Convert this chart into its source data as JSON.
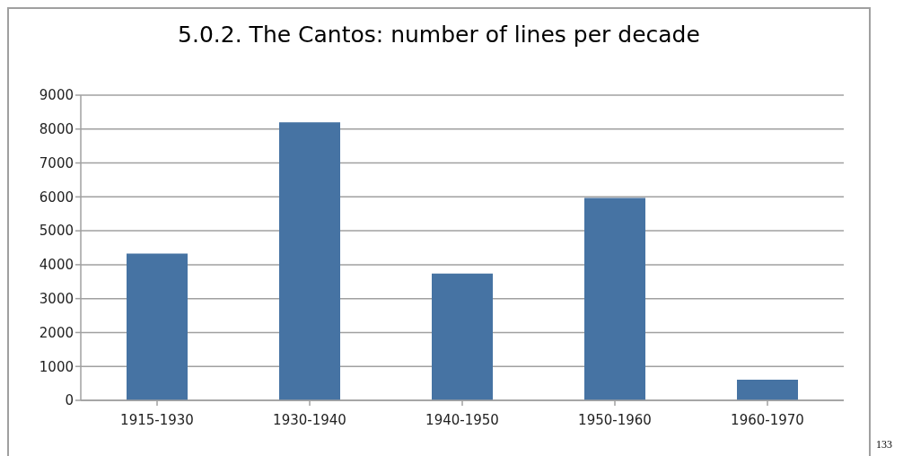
{
  "chart_data": {
    "type": "bar",
    "title": "5.0.2. The Cantos: number of lines per decade",
    "categories": [
      "1915-1930",
      "1930-1940",
      "1940-1950",
      "1950-1960",
      "1960-1970"
    ],
    "values": [
      4330,
      8200,
      3740,
      5970,
      610
    ],
    "color": "#4673a3",
    "ylim": [
      0,
      9000
    ],
    "yticks": [
      0,
      1000,
      2000,
      3000,
      4000,
      5000,
      6000,
      7000,
      8000,
      9000
    ],
    "grid": "y",
    "annotations": [
      "133"
    ]
  }
}
